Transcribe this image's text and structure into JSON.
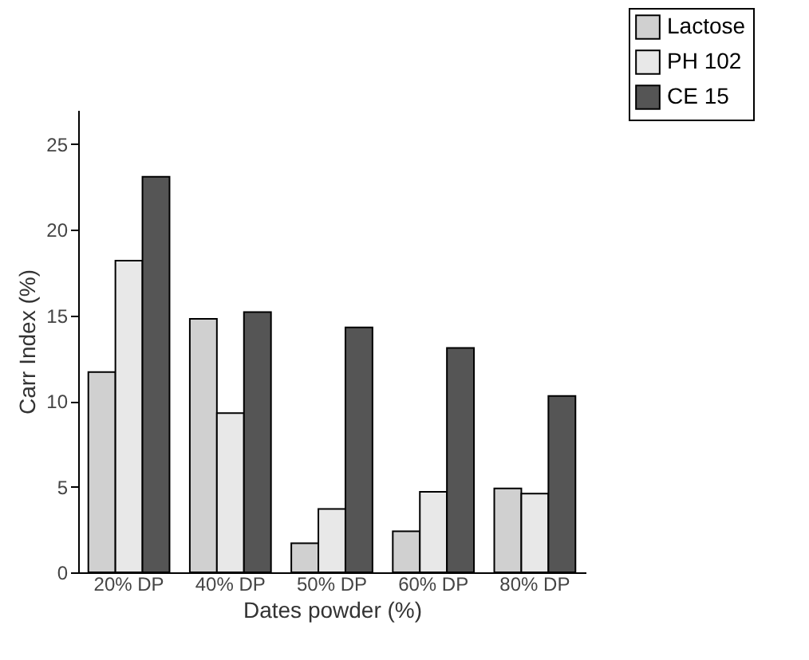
{
  "chart_data": {
    "type": "bar",
    "xlabel": "Dates powder (%)",
    "ylabel": "Carr Index (%)",
    "categories": [
      "20% DP",
      "40% DP",
      "50% DP",
      "60% DP",
      "80% DP"
    ],
    "series": [
      {
        "name": "Lactose",
        "color": "#d0d0d0",
        "values": [
          11.7,
          14.8,
          1.7,
          2.4,
          4.9
        ]
      },
      {
        "name": "PH 102",
        "color": "#e8e8e8",
        "values": [
          18.2,
          9.3,
          3.7,
          4.7,
          4.6
        ]
      },
      {
        "name": "CE 15",
        "color": "#555555",
        "values": [
          23.1,
          15.2,
          14.3,
          13.1,
          10.3
        ]
      }
    ],
    "ylim": [
      0,
      27
    ],
    "yticks": [
      0,
      5,
      10,
      15,
      20,
      25
    ],
    "grid": false,
    "legend": "top right"
  }
}
